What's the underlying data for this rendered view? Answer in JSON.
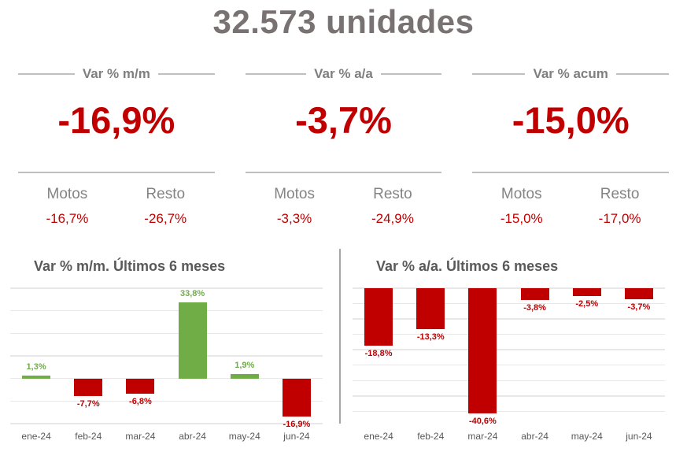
{
  "page": {
    "title": "32.573 unidades"
  },
  "colors": {
    "accent_red": "#C00000",
    "positive_green": "#70AD47",
    "gray_text": "#7F7F7F",
    "line_gray": "#BFBFBF"
  },
  "kpis": [
    {
      "header": "Var % m/m",
      "value": "-16,9%",
      "motos_label": "Motos",
      "motos_value": "-16,7%",
      "resto_label": "Resto",
      "resto_value": "-26,7%"
    },
    {
      "header": "Var % a/a",
      "value": "-3,7%",
      "motos_label": "Motos",
      "motos_value": "-3,3%",
      "resto_label": "Resto",
      "resto_value": "-24,9%"
    },
    {
      "header": "Var % acum",
      "value": "-15,0%",
      "motos_label": "Motos",
      "motos_value": "-15,0%",
      "resto_label": "Resto",
      "resto_value": "-17,0%"
    }
  ],
  "chart_data": [
    {
      "type": "bar",
      "title": "Var % m/m. Últimos 6 meses",
      "categories": [
        "ene-24",
        "feb-24",
        "mar-24",
        "abr-24",
        "may-24",
        "jun-24"
      ],
      "values": [
        1.3,
        -7.7,
        -6.8,
        33.8,
        1.9,
        -16.9
      ],
      "labels": [
        "1,3%",
        "-7,7%",
        "-6,8%",
        "33,8%",
        "1,9%",
        "-16,9%"
      ],
      "unit": "%",
      "ylim": [
        -20,
        40
      ],
      "grid_step": 10,
      "grid": true,
      "legend": false,
      "positive_color": "#70AD47",
      "negative_color": "#C00000"
    },
    {
      "type": "bar",
      "title": "Var % a/a. Últimos 6 meses",
      "categories": [
        "ene-24",
        "feb-24",
        "mar-24",
        "abr-24",
        "may-24",
        "jun-24"
      ],
      "values": [
        -18.8,
        -13.3,
        -40.6,
        -3.8,
        -2.5,
        -3.7
      ],
      "labels": [
        "-18,8%",
        "-13,3%",
        "-40,6%",
        "-3,8%",
        "-2,5%",
        "-3,7%"
      ],
      "unit": "%",
      "ylim": [
        -44,
        0
      ],
      "grid_step": 5,
      "grid": true,
      "legend": false,
      "positive_color": "#70AD47",
      "negative_color": "#C00000"
    }
  ]
}
